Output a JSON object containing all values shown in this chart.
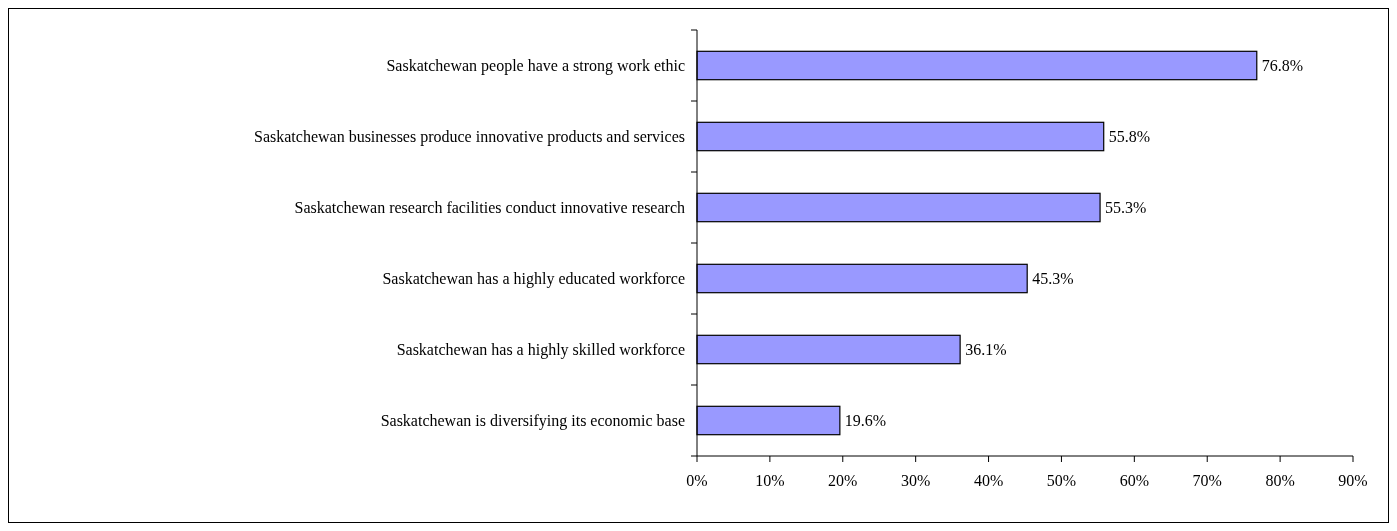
{
  "chart_data": {
    "type": "bar",
    "orientation": "horizontal",
    "categories": [
      "Saskatchewan people have a strong work ethic",
      "Saskatchewan businesses produce innovative products and services",
      "Saskatchewan research facilities conduct innovative research",
      "Saskatchewan has a highly educated workforce",
      "Saskatchewan has a highly skilled workforce",
      "Saskatchewan is diversifying its economic base"
    ],
    "values": [
      76.8,
      55.8,
      55.3,
      45.3,
      36.1,
      19.6
    ],
    "value_labels": [
      "76.8%",
      "55.8%",
      "55.3%",
      "45.3%",
      "36.1%",
      "19.6%"
    ],
    "color": "#9999ff",
    "xlim": [
      0,
      90
    ],
    "xticks": [
      {
        "value": 0,
        "label": "0%"
      },
      {
        "value": 10,
        "label": "10%"
      },
      {
        "value": 20,
        "label": "20%"
      },
      {
        "value": 30,
        "label": "30%"
      },
      {
        "value": 40,
        "label": "40%"
      },
      {
        "value": 50,
        "label": "50%"
      },
      {
        "value": 60,
        "label": "60%"
      },
      {
        "value": 70,
        "label": "70%"
      },
      {
        "value": 80,
        "label": "80%"
      },
      {
        "value": 90,
        "label": "90%"
      }
    ],
    "grid": false
  }
}
